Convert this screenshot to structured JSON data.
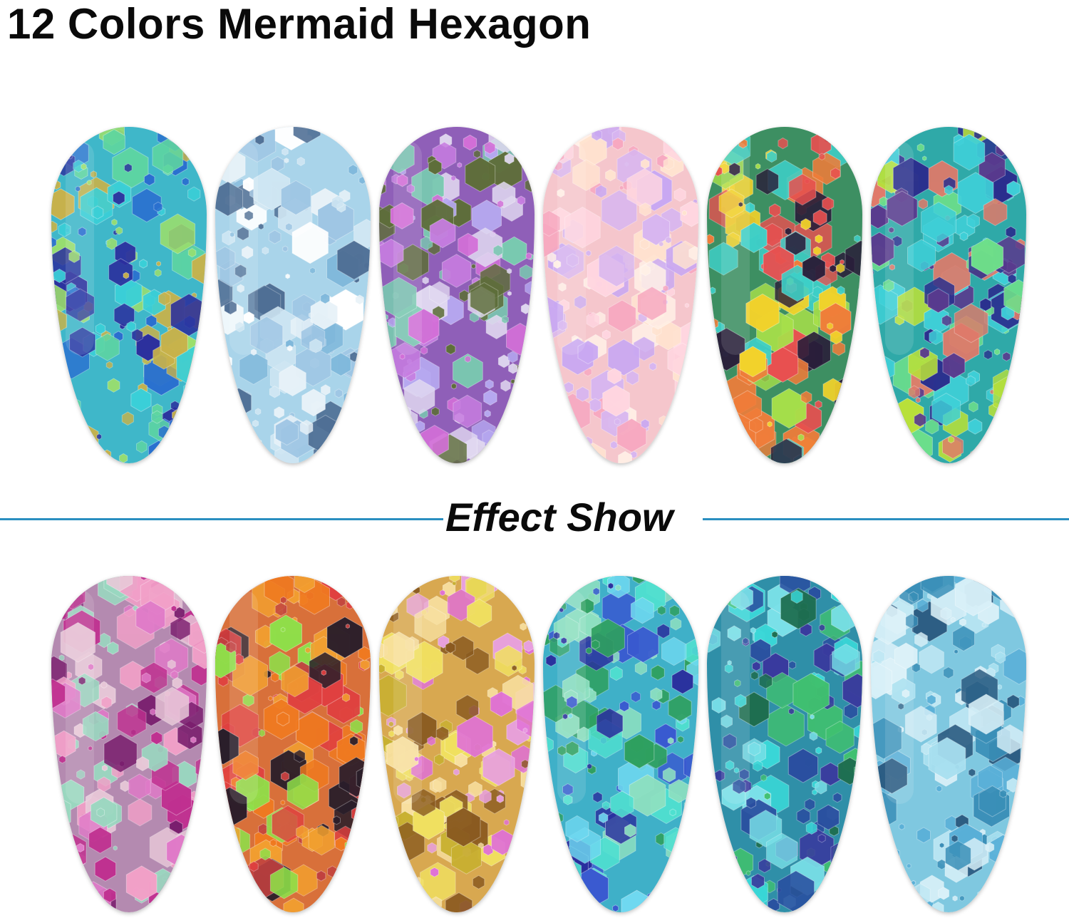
{
  "title": "12 Colors Mermaid Hexagon",
  "section_label": "Effect Show",
  "divider_color": "#2a8fc0",
  "nails_top": [
    {
      "base": "#3fb7c9",
      "colors": [
        "#2b2f9e",
        "#5fd6a0",
        "#9ee06a",
        "#3ad0d8",
        "#c9b24a",
        "#2a6fd0"
      ]
    },
    {
      "base": "#a9d4ea",
      "colors": [
        "#e8f2f8",
        "#7fb8db",
        "#4f6f95",
        "#cfe6f3",
        "#9fc6e4",
        "#ffffff"
      ]
    },
    {
      "base": "#8f5fb8",
      "colors": [
        "#c77de0",
        "#b6a8f0",
        "#5e6e3a",
        "#79c9b0",
        "#d36fd8",
        "#e0d8f0"
      ]
    },
    {
      "base": "#f5c6cc",
      "colors": [
        "#ffe3d0",
        "#d8b6f0",
        "#f7a8c0",
        "#fff0e6",
        "#c9a8f2",
        "#ffd6e0"
      ]
    },
    {
      "base": "#3d8f62",
      "colors": [
        "#f2d22b",
        "#f07d3a",
        "#3ed0c8",
        "#2a1e3a",
        "#a8e04a",
        "#e85050"
      ]
    },
    {
      "base": "#2fa9a8",
      "colors": [
        "#2a2f8e",
        "#6ee08a",
        "#e07a6a",
        "#3fd0d8",
        "#b8e03a",
        "#5a3a8e"
      ]
    }
  ],
  "nails_bottom": [
    {
      "base": "#b48ab0",
      "colors": [
        "#7a1e6e",
        "#e07ac8",
        "#9ad8c0",
        "#f2a0c8",
        "#c03090",
        "#e8c8d8"
      ]
    },
    {
      "base": "#d8703a",
      "colors": [
        "#f2a030",
        "#2a1e2a",
        "#8ee04a",
        "#e04040",
        "#f07a20",
        "#c04040"
      ]
    },
    {
      "base": "#d8a850",
      "colors": [
        "#f0e060",
        "#e070d8",
        "#8a5a20",
        "#f8e0a0",
        "#c8b030",
        "#e8a0e0"
      ]
    },
    {
      "base": "#3fb0c8",
      "colors": [
        "#2a2f9e",
        "#50e0d0",
        "#2fa060",
        "#6fd8f0",
        "#3a5ad0",
        "#8ee0c0"
      ]
    },
    {
      "base": "#2f8fa8",
      "colors": [
        "#3ad8d8",
        "#2a4fa0",
        "#40c070",
        "#7ae0e8",
        "#1e6e50",
        "#3a3a9e"
      ]
    },
    {
      "base": "#7fc8e0",
      "colors": [
        "#a8e0f0",
        "#3a8fb8",
        "#d8f0f8",
        "#5ab0d8",
        "#c0e8f4",
        "#2a5a80"
      ]
    }
  ]
}
